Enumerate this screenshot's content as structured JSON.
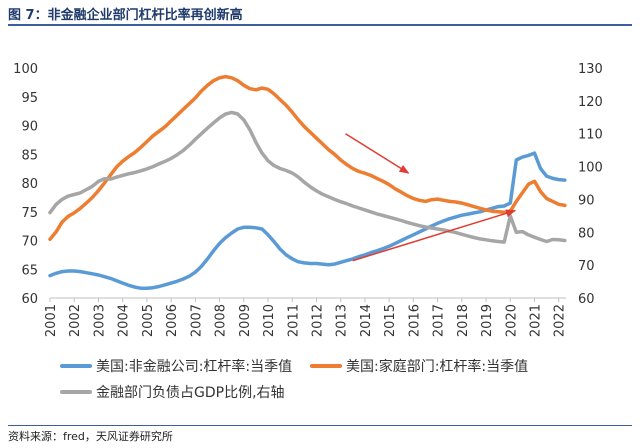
{
  "figure_title": "图 7：非金融企业部门杠杆比率再创新高",
  "source": "资料来源：fred，天风证券研究所",
  "chart_data": {
    "type": "line",
    "title": "非金融企业部门杠杆比率再创新高",
    "x_ticks": [
      "2001",
      "2002",
      "2003",
      "2004",
      "2005",
      "2006",
      "2007",
      "2008",
      "2009",
      "2010",
      "2011",
      "2012",
      "2013",
      "2014",
      "2015",
      "2016",
      "2017",
      "2018",
      "2019",
      "2020",
      "2021",
      "2022"
    ],
    "xlim": [
      2001,
      2022.3
    ],
    "left_axis": {
      "ticks": [
        60,
        65,
        70,
        75,
        80,
        85,
        90,
        95,
        100
      ],
      "ylim": [
        60,
        100
      ]
    },
    "right_axis": {
      "ticks": [
        60,
        70,
        80,
        90,
        100,
        110,
        120,
        130
      ],
      "ylim": [
        60,
        130
      ]
    },
    "series": [
      {
        "name": "美国:非金融公司:杠杆率:当季值",
        "axis": "left",
        "color": "#5b9bd5",
        "points": [
          [
            2001.0,
            63.9
          ],
          [
            2001.25,
            64.3
          ],
          [
            2001.5,
            64.6
          ],
          [
            2001.75,
            64.7
          ],
          [
            2002.0,
            64.7
          ],
          [
            2002.25,
            64.6
          ],
          [
            2002.5,
            64.4
          ],
          [
            2002.75,
            64.2
          ],
          [
            2003.0,
            64.0
          ],
          [
            2003.25,
            63.7
          ],
          [
            2003.5,
            63.4
          ],
          [
            2003.75,
            63.0
          ],
          [
            2004.0,
            62.6
          ],
          [
            2004.25,
            62.2
          ],
          [
            2004.5,
            61.9
          ],
          [
            2004.75,
            61.7
          ],
          [
            2005.0,
            61.7
          ],
          [
            2005.25,
            61.8
          ],
          [
            2005.5,
            62.0
          ],
          [
            2005.75,
            62.3
          ],
          [
            2006.0,
            62.6
          ],
          [
            2006.25,
            62.9
          ],
          [
            2006.5,
            63.3
          ],
          [
            2006.75,
            63.8
          ],
          [
            2007.0,
            64.5
          ],
          [
            2007.25,
            65.5
          ],
          [
            2007.5,
            66.8
          ],
          [
            2007.75,
            68.2
          ],
          [
            2008.0,
            69.5
          ],
          [
            2008.25,
            70.5
          ],
          [
            2008.5,
            71.3
          ],
          [
            2008.75,
            72.0
          ],
          [
            2009.0,
            72.3
          ],
          [
            2009.25,
            72.3
          ],
          [
            2009.5,
            72.2
          ],
          [
            2009.75,
            72.0
          ],
          [
            2010.0,
            71.0
          ],
          [
            2010.25,
            69.8
          ],
          [
            2010.5,
            68.5
          ],
          [
            2010.75,
            67.5
          ],
          [
            2011.0,
            66.8
          ],
          [
            2011.25,
            66.3
          ],
          [
            2011.5,
            66.1
          ],
          [
            2011.75,
            66.0
          ],
          [
            2012.0,
            66.0
          ],
          [
            2012.25,
            65.9
          ],
          [
            2012.5,
            65.8
          ],
          [
            2012.75,
            65.9
          ],
          [
            2013.0,
            66.2
          ],
          [
            2013.25,
            66.5
          ],
          [
            2013.5,
            66.8
          ],
          [
            2013.75,
            67.2
          ],
          [
            2014.0,
            67.5
          ],
          [
            2014.25,
            67.9
          ],
          [
            2014.5,
            68.2
          ],
          [
            2014.75,
            68.6
          ],
          [
            2015.0,
            69.0
          ],
          [
            2015.25,
            69.5
          ],
          [
            2015.5,
            70.0
          ],
          [
            2015.75,
            70.5
          ],
          [
            2016.0,
            71.0
          ],
          [
            2016.25,
            71.5
          ],
          [
            2016.5,
            72.0
          ],
          [
            2016.75,
            72.5
          ],
          [
            2017.0,
            73.0
          ],
          [
            2017.25,
            73.4
          ],
          [
            2017.5,
            73.8
          ],
          [
            2017.75,
            74.1
          ],
          [
            2018.0,
            74.4
          ],
          [
            2018.25,
            74.6
          ],
          [
            2018.5,
            74.8
          ],
          [
            2018.75,
            75.0
          ],
          [
            2019.0,
            75.3
          ],
          [
            2019.25,
            75.6
          ],
          [
            2019.5,
            75.9
          ],
          [
            2019.75,
            76.0
          ],
          [
            2020.0,
            76.5
          ],
          [
            2020.25,
            84.0
          ],
          [
            2020.5,
            84.5
          ],
          [
            2020.75,
            84.8
          ],
          [
            2021.0,
            85.2
          ],
          [
            2021.25,
            82.5
          ],
          [
            2021.5,
            81.2
          ],
          [
            2021.75,
            80.8
          ],
          [
            2022.0,
            80.6
          ],
          [
            2022.25,
            80.5
          ]
        ]
      },
      {
        "name": "美国:家庭部门:杠杆率:当季值",
        "axis": "left",
        "color": "#ed7d31",
        "points": [
          [
            2001.0,
            70.2
          ],
          [
            2001.25,
            71.5
          ],
          [
            2001.5,
            73.2
          ],
          [
            2001.75,
            74.2
          ],
          [
            2002.0,
            74.8
          ],
          [
            2002.25,
            75.6
          ],
          [
            2002.5,
            76.5
          ],
          [
            2002.75,
            77.5
          ],
          [
            2003.0,
            78.7
          ],
          [
            2003.25,
            80.0
          ],
          [
            2003.5,
            81.4
          ],
          [
            2003.75,
            82.8
          ],
          [
            2004.0,
            83.8
          ],
          [
            2004.25,
            84.6
          ],
          [
            2004.5,
            85.3
          ],
          [
            2004.75,
            86.2
          ],
          [
            2005.0,
            87.2
          ],
          [
            2005.25,
            88.2
          ],
          [
            2005.5,
            89.0
          ],
          [
            2005.75,
            89.8
          ],
          [
            2006.0,
            90.8
          ],
          [
            2006.25,
            91.8
          ],
          [
            2006.5,
            92.8
          ],
          [
            2006.75,
            93.8
          ],
          [
            2007.0,
            94.8
          ],
          [
            2007.25,
            96.0
          ],
          [
            2007.5,
            97.0
          ],
          [
            2007.75,
            97.8
          ],
          [
            2008.0,
            98.3
          ],
          [
            2008.25,
            98.5
          ],
          [
            2008.5,
            98.3
          ],
          [
            2008.75,
            97.8
          ],
          [
            2009.0,
            97.0
          ],
          [
            2009.25,
            96.4
          ],
          [
            2009.5,
            96.2
          ],
          [
            2009.75,
            96.5
          ],
          [
            2010.0,
            96.3
          ],
          [
            2010.25,
            95.5
          ],
          [
            2010.5,
            94.5
          ],
          [
            2010.75,
            93.5
          ],
          [
            2011.0,
            92.3
          ],
          [
            2011.25,
            91.0
          ],
          [
            2011.5,
            89.8
          ],
          [
            2011.75,
            88.8
          ],
          [
            2012.0,
            87.8
          ],
          [
            2012.25,
            86.8
          ],
          [
            2012.5,
            85.8
          ],
          [
            2012.75,
            85.0
          ],
          [
            2013.0,
            84.0
          ],
          [
            2013.25,
            83.2
          ],
          [
            2013.5,
            82.5
          ],
          [
            2013.75,
            82.0
          ],
          [
            2014.0,
            81.7
          ],
          [
            2014.25,
            81.3
          ],
          [
            2014.5,
            80.8
          ],
          [
            2014.75,
            80.3
          ],
          [
            2015.0,
            79.7
          ],
          [
            2015.25,
            79.0
          ],
          [
            2015.5,
            78.4
          ],
          [
            2015.75,
            77.8
          ],
          [
            2016.0,
            77.3
          ],
          [
            2016.25,
            77.0
          ],
          [
            2016.5,
            76.8
          ],
          [
            2016.75,
            77.1
          ],
          [
            2017.0,
            77.2
          ],
          [
            2017.25,
            77.0
          ],
          [
            2017.5,
            76.8
          ],
          [
            2017.75,
            76.7
          ],
          [
            2018.0,
            76.5
          ],
          [
            2018.25,
            76.2
          ],
          [
            2018.5,
            75.9
          ],
          [
            2018.75,
            75.6
          ],
          [
            2019.0,
            75.3
          ],
          [
            2019.25,
            75.1
          ],
          [
            2019.5,
            75.0
          ],
          [
            2019.75,
            74.9
          ],
          [
            2020.0,
            75.1
          ],
          [
            2020.25,
            76.8
          ],
          [
            2020.5,
            78.3
          ],
          [
            2020.75,
            79.8
          ],
          [
            2021.0,
            80.3
          ],
          [
            2021.25,
            78.5
          ],
          [
            2021.5,
            77.3
          ],
          [
            2021.75,
            76.8
          ],
          [
            2022.0,
            76.3
          ],
          [
            2022.25,
            76.1
          ]
        ]
      },
      {
        "name": "金融部门负债占GDP比例,右轴",
        "axis": "right",
        "color": "#a6a6a6",
        "points": [
          [
            2001.0,
            86.0
          ],
          [
            2001.25,
            88.5
          ],
          [
            2001.5,
            90.0
          ],
          [
            2001.75,
            91.0
          ],
          [
            2002.0,
            91.5
          ],
          [
            2002.25,
            92.0
          ],
          [
            2002.5,
            93.0
          ],
          [
            2002.75,
            94.0
          ],
          [
            2003.0,
            95.5
          ],
          [
            2003.25,
            96.3
          ],
          [
            2003.5,
            96.2
          ],
          [
            2003.75,
            96.8
          ],
          [
            2004.0,
            97.3
          ],
          [
            2004.25,
            97.8
          ],
          [
            2004.5,
            98.2
          ],
          [
            2004.75,
            98.7
          ],
          [
            2005.0,
            99.3
          ],
          [
            2005.25,
            100.0
          ],
          [
            2005.5,
            100.8
          ],
          [
            2005.75,
            101.6
          ],
          [
            2006.0,
            102.5
          ],
          [
            2006.25,
            103.6
          ],
          [
            2006.5,
            104.9
          ],
          [
            2006.75,
            106.5
          ],
          [
            2007.0,
            108.3
          ],
          [
            2007.25,
            110.0
          ],
          [
            2007.5,
            111.7
          ],
          [
            2007.75,
            113.3
          ],
          [
            2008.0,
            114.8
          ],
          [
            2008.25,
            116.0
          ],
          [
            2008.5,
            116.5
          ],
          [
            2008.75,
            116.0
          ],
          [
            2009.0,
            114.2
          ],
          [
            2009.25,
            111.2
          ],
          [
            2009.5,
            107.4
          ],
          [
            2009.75,
            104.1
          ],
          [
            2010.0,
            101.8
          ],
          [
            2010.25,
            100.3
          ],
          [
            2010.5,
            99.4
          ],
          [
            2010.75,
            98.8
          ],
          [
            2011.0,
            98.0
          ],
          [
            2011.25,
            96.8
          ],
          [
            2011.5,
            95.2
          ],
          [
            2011.75,
            93.8
          ],
          [
            2012.0,
            92.6
          ],
          [
            2012.25,
            91.6
          ],
          [
            2012.5,
            90.8
          ],
          [
            2012.75,
            90.0
          ],
          [
            2013.0,
            89.3
          ],
          [
            2013.25,
            88.7
          ],
          [
            2013.5,
            88.0
          ],
          [
            2013.75,
            87.4
          ],
          [
            2014.0,
            86.8
          ],
          [
            2014.25,
            86.2
          ],
          [
            2014.5,
            85.6
          ],
          [
            2014.75,
            85.1
          ],
          [
            2015.0,
            84.6
          ],
          [
            2015.25,
            84.1
          ],
          [
            2015.5,
            83.6
          ],
          [
            2015.75,
            83.0
          ],
          [
            2016.0,
            82.5
          ],
          [
            2016.25,
            82.0
          ],
          [
            2016.5,
            81.6
          ],
          [
            2016.75,
            81.3
          ],
          [
            2017.0,
            81.0
          ],
          [
            2017.25,
            80.7
          ],
          [
            2017.5,
            80.3
          ],
          [
            2017.75,
            79.9
          ],
          [
            2018.0,
            79.4
          ],
          [
            2018.25,
            78.9
          ],
          [
            2018.5,
            78.4
          ],
          [
            2018.75,
            78.0
          ],
          [
            2019.0,
            77.7
          ],
          [
            2019.25,
            77.4
          ],
          [
            2019.5,
            77.2
          ],
          [
            2019.75,
            77.0
          ],
          [
            2020.0,
            85.0
          ],
          [
            2020.25,
            80.0
          ],
          [
            2020.5,
            80.2
          ],
          [
            2020.75,
            79.2
          ],
          [
            2021.0,
            78.5
          ],
          [
            2021.25,
            77.8
          ],
          [
            2021.5,
            77.2
          ],
          [
            2021.75,
            77.8
          ],
          [
            2022.0,
            77.7
          ],
          [
            2022.25,
            77.5
          ]
        ]
      }
    ],
    "annotations": [
      {
        "type": "arrow",
        "color": "#e03c31",
        "from": [
          2013.2,
          110.0
        ],
        "to": [
          2015.8,
          98.0
        ],
        "axis": "right",
        "note": "downward trend marker"
      },
      {
        "type": "arrow",
        "color": "#e03c31",
        "from": [
          2013.5,
          66.5
        ],
        "to": [
          2020.2,
          75.2
        ],
        "axis": "left",
        "note": "upward trend marker"
      }
    ],
    "legend_position": "bottom"
  }
}
